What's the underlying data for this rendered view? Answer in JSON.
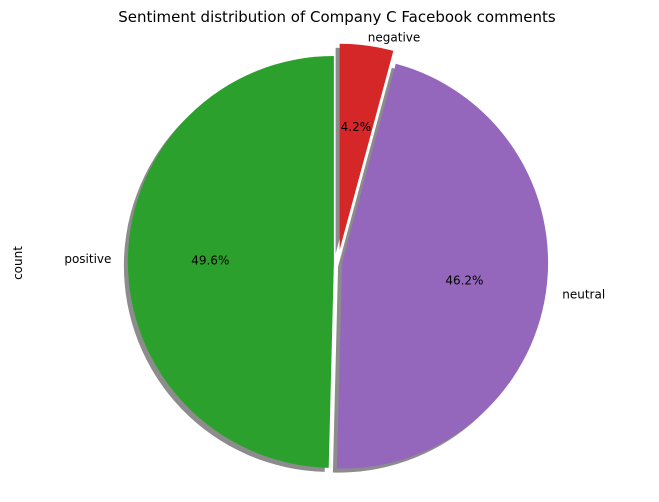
{
  "chart_data": {
    "type": "pie",
    "title": "Sentiment distribution of Company C Facebook comments",
    "ylabel": "count",
    "start_angle_deg": 90,
    "counterclock": true,
    "shadow": true,
    "slices": [
      {
        "label": "positive",
        "percent": 49.6,
        "pct_label": "49.6%",
        "color": "#2ca02c",
        "explode": 0.02
      },
      {
        "label": "neutral",
        "percent": 46.2,
        "pct_label": "46.2%",
        "color": "#9467bd",
        "explode": 0.02
      },
      {
        "label": "negative",
        "percent": 4.2,
        "pct_label": "4.2%",
        "color": "#d62728",
        "explode": 0.06
      }
    ]
  }
}
